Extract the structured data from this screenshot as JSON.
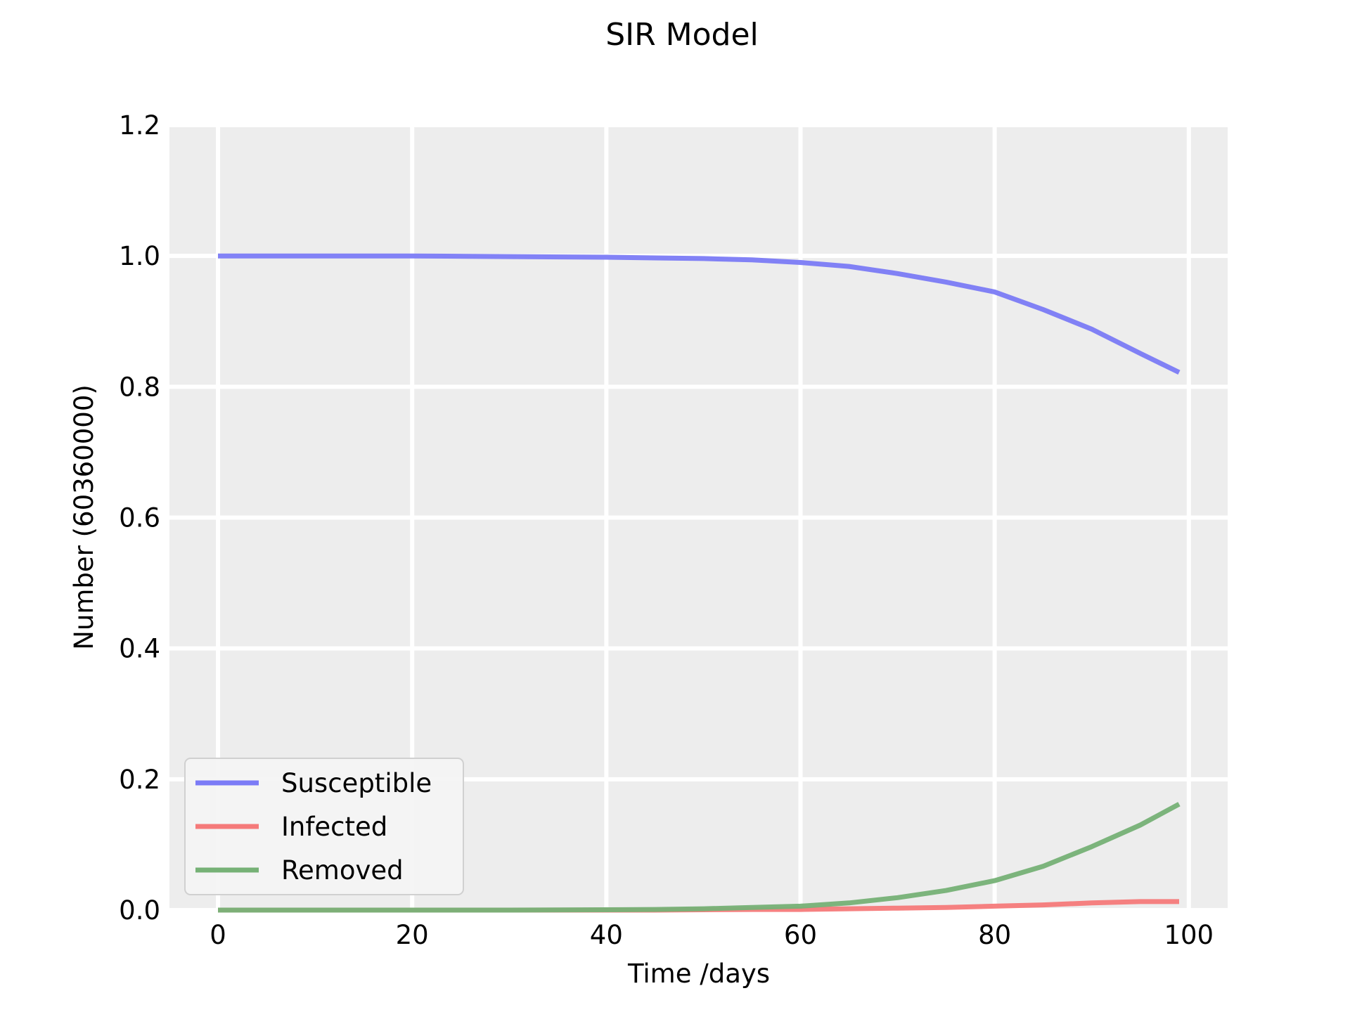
{
  "chart_data": {
    "type": "line",
    "title": "SIR Model",
    "xlabel": "Time /days",
    "ylabel": "Number (60360000)",
    "xlim": [
      -5,
      104
    ],
    "ylim": [
      0,
      1.2
    ],
    "xticks": [
      0,
      20,
      40,
      60,
      80,
      100
    ],
    "yticks": [
      0.0,
      0.2,
      0.4,
      0.6,
      0.8,
      1.0,
      1.2
    ],
    "xtick_labels": [
      "0",
      "20",
      "40",
      "60",
      "80",
      "100"
    ],
    "ytick_labels": [
      "0.0",
      "0.2",
      "0.4",
      "0.6",
      "0.8",
      "1.0",
      "1.2"
    ],
    "grid": true,
    "legend_position": "lower-left",
    "background": "#ededed",
    "x": [
      0,
      10,
      20,
      30,
      40,
      45,
      50,
      55,
      60,
      65,
      70,
      75,
      80,
      85,
      90,
      95,
      99
    ],
    "series": [
      {
        "name": "Susceptible",
        "color": "#7b7bf6",
        "values": [
          1.0,
          1.0,
          1.0,
          0.999,
          0.998,
          0.997,
          0.996,
          0.994,
          0.99,
          0.984,
          0.973,
          0.96,
          0.945,
          0.918,
          0.888,
          0.851,
          0.822
        ]
      },
      {
        "name": "Infected",
        "color": "#f57a7a",
        "values": [
          0.0,
          0.0,
          0.0,
          0.0,
          0.0,
          0.0,
          0.0005,
          0.001,
          0.001,
          0.002,
          0.003,
          0.004,
          0.006,
          0.008,
          0.011,
          0.013,
          0.013
        ]
      },
      {
        "name": "Removed",
        "color": "#76b176",
        "values": [
          0.0,
          0.0,
          0.0,
          0.0,
          0.0005,
          0.001,
          0.002,
          0.004,
          0.006,
          0.011,
          0.019,
          0.03,
          0.045,
          0.067,
          0.097,
          0.13,
          0.162
        ]
      }
    ]
  }
}
